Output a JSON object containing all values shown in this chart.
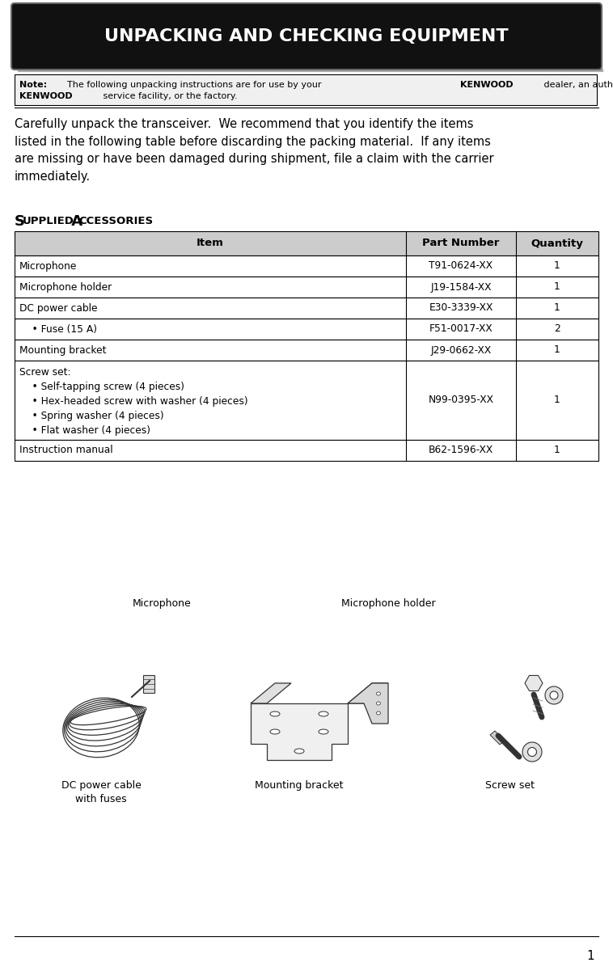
{
  "title": "UNPACKING AND CHECKING EQUIPMENT",
  "title_bg": "#111111",
  "title_color": "#ffffff",
  "note_text_parts": [
    {
      "text": "Note:",
      "bold": true
    },
    {
      "text": "  The following unpacking instructions are for use by your ",
      "bold": false
    },
    {
      "text": "KENWOOD",
      "bold": true
    },
    {
      "text": " dealer, an authorized",
      "bold": false
    }
  ],
  "note_line2_parts": [
    {
      "text": "KENWOOD",
      "bold": true
    },
    {
      "text": " service facility, or the factory.",
      "bold": false
    }
  ],
  "body_text": "Carefully unpack the transceiver.  We recommend that you identify the items\nlisted in the following table before discarding the packing material.  If any items\nare missing or have been damaged during shipment, file a claim with the carrier\nimmediately.",
  "table_header": [
    "Item",
    "Part Number",
    "Quantity"
  ],
  "table_header_bg": "#cccccc",
  "table_rows": [
    {
      "item": "Microphone",
      "part": "T91-0624-XX",
      "qty": "1",
      "multiline": false
    },
    {
      "item": "Microphone holder",
      "part": "J19-1584-XX",
      "qty": "1",
      "multiline": false
    },
    {
      "item": "DC power cable",
      "part": "E30-3339-XX",
      "qty": "1",
      "multiline": false
    },
    {
      "item": "    • Fuse (15 A)",
      "part": "F51-0017-XX",
      "qty": "2",
      "multiline": false
    },
    {
      "item": "Mounting bracket",
      "part": "J29-0662-XX",
      "qty": "1",
      "multiline": false
    },
    {
      "item": "Screw set:\n    • Self-tapping screw (4 pieces)\n    • Hex-headed screw with washer (4 pieces)\n    • Spring washer (4 pieces)\n    • Flat washer (4 pieces)",
      "part": "N99-0395-XX",
      "qty": "1",
      "multiline": true
    },
    {
      "item": "Instruction manual",
      "part": "B62-1596-XX",
      "qty": "1",
      "multiline": false
    }
  ],
  "label_microphone": "Microphone",
  "label_mic_holder": "Microphone holder",
  "label_dc_cable": "DC power cable\nwith fuses",
  "label_bracket": "Mounting bracket",
  "label_screw": "Screw set",
  "page_number": "1",
  "bg_color": "#ffffff",
  "text_color": "#000000"
}
